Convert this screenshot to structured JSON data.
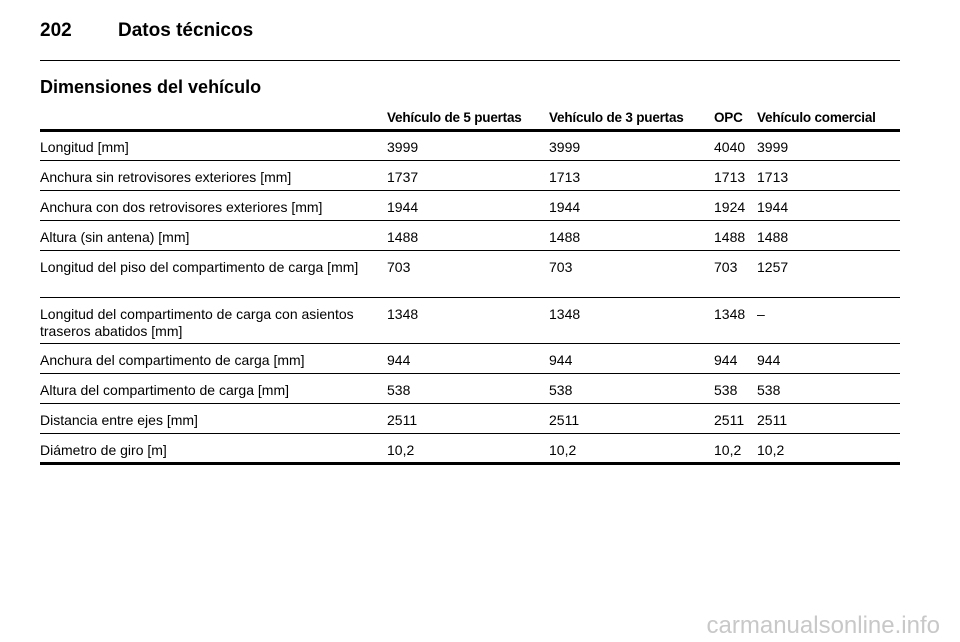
{
  "header": {
    "page_number": "202",
    "title": "Datos técnicos"
  },
  "section_title": "Dimensiones del vehículo",
  "table": {
    "header": [
      "",
      "Vehículo de 5 puertas",
      "Vehículo de 3 puertas",
      "OPC",
      "Vehículo comercial"
    ],
    "rows": [
      [
        "Longitud [mm]",
        "3999",
        "3999",
        "4040",
        "3999"
      ],
      [
        "Anchura sin retrovisores exteriores [mm]",
        "1737",
        "1713",
        "1713",
        "1713"
      ],
      [
        "Anchura con dos retrovisores exteriores [mm]",
        "1944",
        "1944",
        "1924",
        "1944"
      ],
      [
        "Altura (sin antena) [mm]",
        "1488",
        "1488",
        "1488",
        "1488"
      ],
      [
        "Longitud del piso del compartimento de carga [mm]",
        "703",
        "703",
        "703",
        "1257"
      ],
      [
        "Longitud del compartimento de carga con asientos traseros abatidos [mm]",
        "1348",
        "1348",
        "1348",
        "–"
      ],
      [
        "Anchura del compartimento de carga [mm]",
        "944",
        "944",
        "944",
        "944"
      ],
      [
        "Altura del compartimento de carga [mm]",
        "538",
        "538",
        "538",
        "538"
      ],
      [
        "Distancia entre ejes [mm]",
        "2511",
        "2511",
        "2511",
        "2511"
      ],
      [
        "Diámetro de giro [m]",
        "10,2",
        "10,2",
        "10,2",
        "10,2"
      ]
    ]
  },
  "watermark": "carmanualsonline.info"
}
